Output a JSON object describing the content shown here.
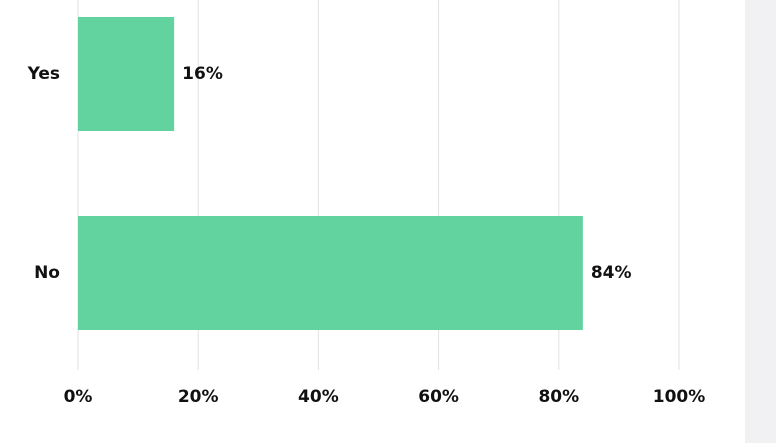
{
  "chart_data": {
    "type": "hbar",
    "categories": [
      "Yes",
      "No"
    ],
    "values": [
      16,
      84
    ],
    "value_labels": [
      "16%",
      "84%"
    ],
    "color": "#62d39e",
    "xlim": [
      0,
      100
    ],
    "xticks": [
      {
        "value": 0,
        "label": "0%"
      },
      {
        "value": 20,
        "label": "20%"
      },
      {
        "value": 40,
        "label": "40%"
      },
      {
        "value": 60,
        "label": "60%"
      },
      {
        "value": 80,
        "label": "80%"
      },
      {
        "value": 100,
        "label": "100%"
      }
    ],
    "grid": true
  }
}
